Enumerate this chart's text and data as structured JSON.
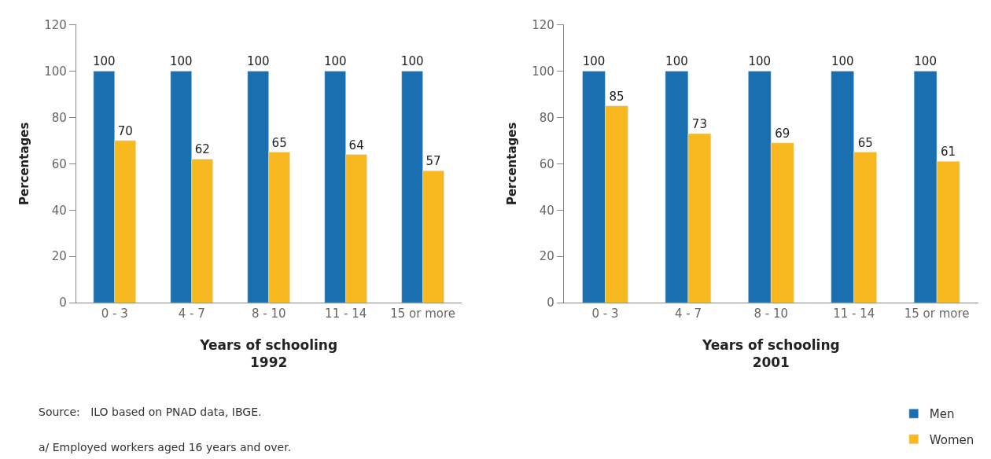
{
  "chart_data": [
    {
      "type": "bar",
      "xlabel": "Years of schooling\n1992",
      "ylabel": "Percentages",
      "categories": [
        "0 - 3",
        "4 - 7",
        "8 - 10",
        "11 - 14",
        "15 or more"
      ],
      "series": [
        {
          "name": "Men",
          "color": "#1a6fb0",
          "values": [
            100,
            100,
            100,
            100,
            100
          ]
        },
        {
          "name": "Women",
          "color": "#f8b820",
          "values": [
            70,
            62,
            65,
            64,
            57
          ]
        }
      ],
      "ylim": [
        0,
        120
      ],
      "yticks": [
        0,
        20,
        40,
        60,
        80,
        100,
        120
      ],
      "data_labels": true,
      "legend": "bottom right",
      "annotations": [
        "Source:   ILO based on PNAD data, IBGE.",
        "a/ Employed workers aged 16 years and over."
      ]
    },
    {
      "type": "bar",
      "xlabel": "Years of schooling\n2001",
      "ylabel": "Percentages",
      "categories": [
        "0 - 3",
        "4 - 7",
        "8 - 10",
        "11 - 14",
        "15 or more"
      ],
      "series": [
        {
          "color": "#1a6fb0",
          "values": [
            100,
            100,
            100,
            100,
            100
          ]
        },
        {
          "color": "#f8b820",
          "values": [
            85,
            73,
            69,
            65,
            61
          ]
        }
      ],
      "ylim": [
        0,
        120
      ],
      "yticks": [
        0,
        20,
        40,
        60,
        80,
        100,
        120
      ],
      "data_labels": true
    }
  ]
}
